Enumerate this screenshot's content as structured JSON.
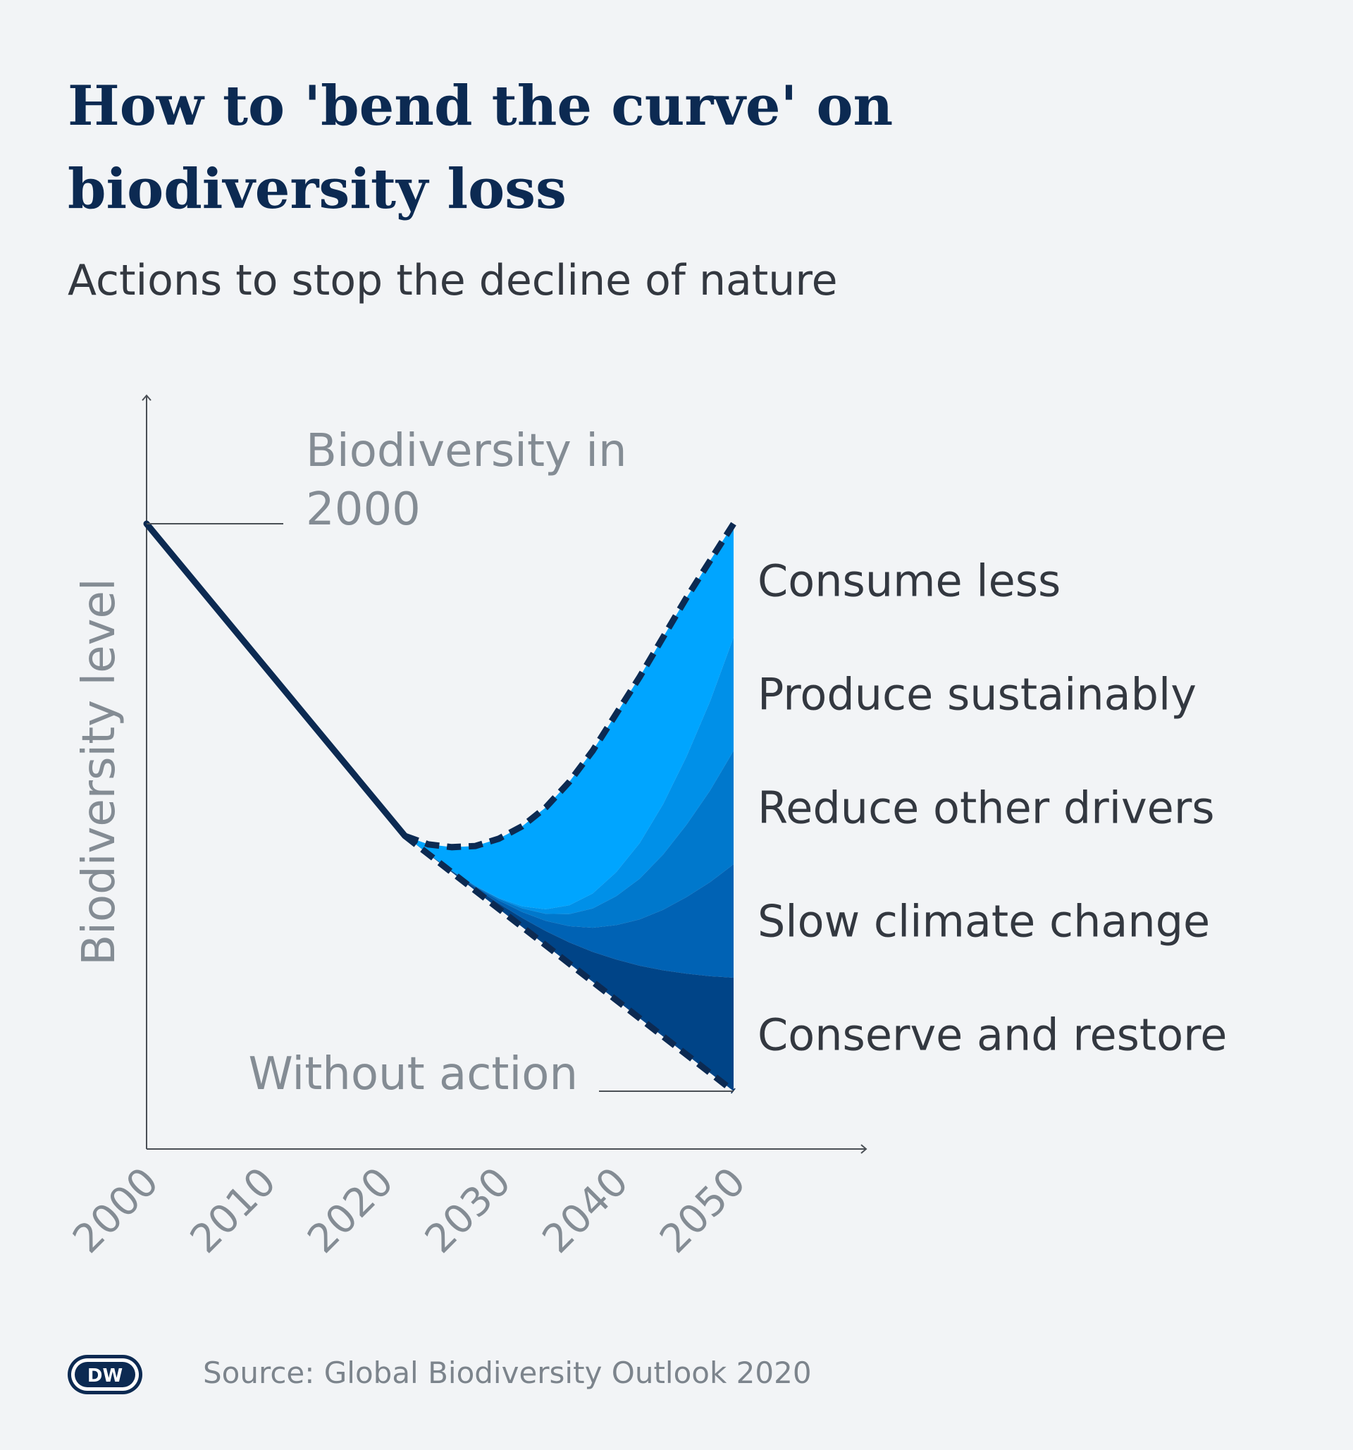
{
  "title_line1": "How to 'bend the curve' on",
  "title_line2": "biodiversity loss",
  "subtitle": "Actions to stop the decline of nature",
  "source": "Source: Global Biodiversity Outlook 2020",
  "logo_text": "DW",
  "colors": {
    "background": "#f2f4f6",
    "title": "#0c2a52",
    "line": "#0c2a52",
    "axis_text": "#848c94",
    "label_text": "#333840",
    "bands": [
      "#00a5ff",
      "#0090e8",
      "#0078cc",
      "#0062b4",
      "#004487"
    ]
  },
  "chart_data": {
    "type": "area",
    "ylabel": "Biodiversity level",
    "xlabel": "",
    "x_ticks": [
      "2000",
      "2010",
      "2020",
      "2030",
      "2040",
      "2050"
    ],
    "xlim": [
      2000,
      2050
    ],
    "ylim": [
      0,
      100
    ],
    "annotations": [
      {
        "text_line1": "Biodiversity in",
        "text_line2": "2000",
        "x": 2000,
        "y": 100
      },
      {
        "text": "Without action",
        "x": 2050,
        "y": 0
      }
    ],
    "historical": {
      "x": [
        2000,
        2022
      ],
      "y": [
        100,
        45
      ]
    },
    "scenarios": {
      "with_action": {
        "x": [
          2022,
          2024,
          2026,
          2028,
          2030,
          2032,
          2034,
          2036,
          2038,
          2040,
          2042,
          2044,
          2046,
          2048,
          2050
        ],
        "y": [
          45,
          43.5,
          43,
          43.2,
          44.5,
          46.7,
          50,
          54.5,
          60,
          66.5,
          73,
          80,
          87,
          93.5,
          100
        ]
      },
      "without_action": {
        "x": [
          2022,
          2050
        ],
        "y": [
          45,
          0
        ]
      }
    },
    "series": [
      {
        "name": "Consume less",
        "end_range": [
          80,
          100
        ]
      },
      {
        "name": "Produce sustainably",
        "end_range": [
          60,
          80
        ]
      },
      {
        "name": "Reduce other drivers",
        "end_range": [
          40,
          60
        ]
      },
      {
        "name": "Slow climate change",
        "end_range": [
          20,
          40
        ]
      },
      {
        "name": "Conserve and restore",
        "end_range": [
          0,
          20
        ]
      }
    ],
    "grid": false,
    "legend": "right"
  }
}
